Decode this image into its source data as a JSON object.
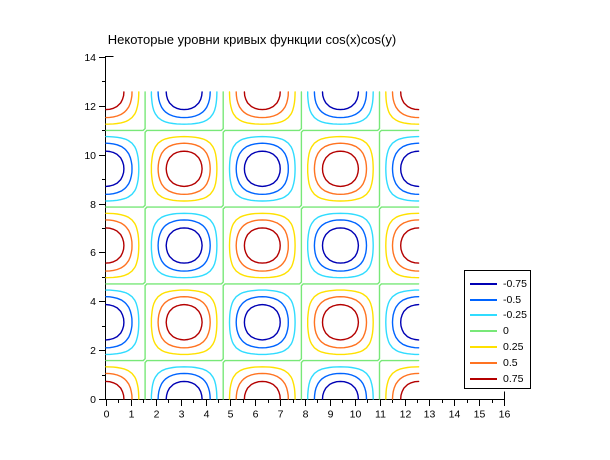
{
  "chart_data": {
    "type": "contour",
    "title": "Некоторые уровни кривых функции cos(x)cos(y)",
    "function": "cos(x)*cos(y)",
    "levels": [
      -0.75,
      -0.5,
      -0.25,
      0,
      0.25,
      0.5,
      0.75
    ],
    "level_colors": [
      "#0000B4",
      "#0064FF",
      "#30DCFF",
      "#78E878",
      "#FFE100",
      "#FF7321",
      "#B40000"
    ],
    "legend_labels": [
      "-0.75",
      "-0.5",
      "-0.25",
      "0",
      "0.25",
      "0.5",
      "0.75"
    ],
    "x_domain": [
      0,
      12.566370614359172
    ],
    "y_domain": [
      0,
      12.566370614359172
    ],
    "xlim": [
      0,
      16
    ],
    "ylim": [
      0,
      14
    ],
    "x_ticks": [
      0,
      1,
      2,
      3,
      4,
      5,
      6,
      7,
      8,
      9,
      10,
      11,
      12,
      13,
      14,
      15,
      16
    ],
    "x_minor_step": 0.5,
    "y_ticks": [
      0,
      2,
      4,
      6,
      8,
      10,
      12,
      14
    ],
    "y_minor_step": 1,
    "grid": false,
    "legend_position": "right",
    "axis_color": "#000000",
    "text_color": "#000000",
    "background_color": "#FFFFFF"
  }
}
